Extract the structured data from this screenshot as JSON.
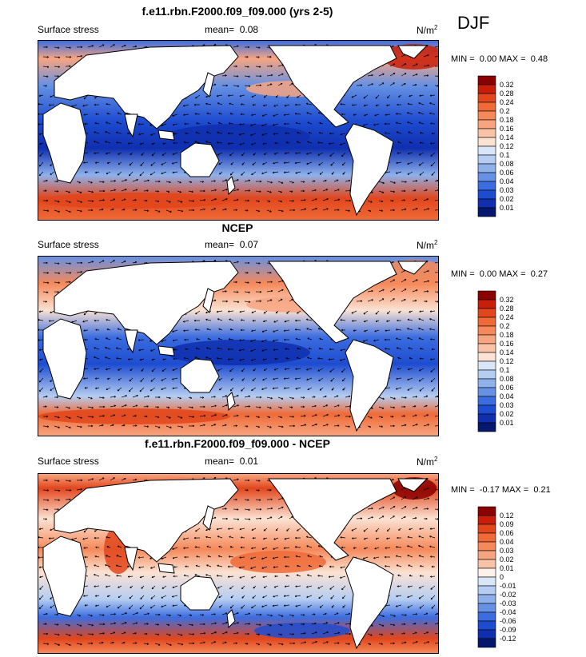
{
  "season": "DJF",
  "variable": "Surface stress",
  "units": "N/m",
  "units_sup": "2",
  "mean_label": "mean=",
  "minmax": {
    "min_label": "MIN =",
    "max_label": "MAX ="
  },
  "panels": [
    {
      "title": "f.e11.rbn.F2000.f09_f09.000 (yrs 2-5)",
      "mean": "0.08",
      "min": "0.00",
      "max": "0.48",
      "colorbar": {
        "labels": [
          "0.32",
          "0.28",
          "0.24",
          "0.2",
          "0.18",
          "0.16",
          "0.14",
          "0.12",
          "0.1",
          "0.08",
          "0.06",
          "0.04",
          "0.03",
          "0.02",
          "0.01"
        ],
        "colors": [
          "#8b0000",
          "#c81e0a",
          "#e2461c",
          "#ef6a37",
          "#f5895a",
          "#f7a581",
          "#f9c3a7",
          "#fbe2d3",
          "#d8e6f8",
          "#b5cdf2",
          "#8eb1ec",
          "#6691e4",
          "#3c6de0",
          "#1e4cd0",
          "#0f2fae",
          "#05186e"
        ]
      }
    },
    {
      "title": "NCEP",
      "mean": "0.07",
      "min": "0.00",
      "max": "0.27",
      "colorbar": {
        "labels": [
          "0.32",
          "0.28",
          "0.24",
          "0.2",
          "0.18",
          "0.16",
          "0.14",
          "0.12",
          "0.1",
          "0.08",
          "0.06",
          "0.04",
          "0.03",
          "0.02",
          "0.01"
        ],
        "colors": [
          "#8b0000",
          "#c81e0a",
          "#e2461c",
          "#ef6a37",
          "#f5895a",
          "#f7a581",
          "#f9c3a7",
          "#fbe2d3",
          "#d8e6f8",
          "#b5cdf2",
          "#8eb1ec",
          "#6691e4",
          "#3c6de0",
          "#1e4cd0",
          "#0f2fae",
          "#05186e"
        ]
      }
    },
    {
      "title": "f.e11.rbn.F2000.f09_f09.000 - NCEP",
      "mean": "0.01",
      "min": "-0.17",
      "max": "0.21",
      "colorbar": {
        "labels": [
          "0.12",
          "0.09",
          "0.06",
          "0.04",
          "0.03",
          "0.02",
          "0.01",
          "0",
          "-0.01",
          "-0.02",
          "-0.03",
          "-0.04",
          "-0.06",
          "-0.09",
          "-0.12"
        ],
        "colors": [
          "#8b0000",
          "#c81e0a",
          "#e2461c",
          "#ef6a37",
          "#f5895a",
          "#f7a581",
          "#f9c3a7",
          "#fdf1ea",
          "#d8e6f8",
          "#b5cdf2",
          "#8eb1ec",
          "#6691e4",
          "#3c6de0",
          "#1e4cd0",
          "#0f2fae",
          "#05186e"
        ]
      }
    }
  ],
  "chart_data": [
    {
      "type": "heatmap",
      "title": "f.e11.rbn.F2000.f09_f09.000 (yrs 2-5)",
      "field": "Surface stress",
      "units": "N/m2",
      "season": "DJF",
      "mean": 0.08,
      "min": 0.0,
      "max": 0.48,
      "contour_levels": [
        0.01,
        0.02,
        0.03,
        0.04,
        0.06,
        0.08,
        0.1,
        0.12,
        0.14,
        0.16,
        0.18,
        0.2,
        0.24,
        0.28,
        0.32
      ]
    },
    {
      "type": "heatmap",
      "title": "NCEP",
      "field": "Surface stress",
      "units": "N/m2",
      "season": "DJF",
      "mean": 0.07,
      "min": 0.0,
      "max": 0.27,
      "contour_levels": [
        0.01,
        0.02,
        0.03,
        0.04,
        0.06,
        0.08,
        0.1,
        0.12,
        0.14,
        0.16,
        0.18,
        0.2,
        0.24,
        0.28,
        0.32
      ]
    },
    {
      "type": "heatmap",
      "title": "f.e11.rbn.F2000.f09_f09.000 - NCEP",
      "field": "Surface stress",
      "units": "N/m2",
      "season": "DJF",
      "mean": 0.01,
      "min": -0.17,
      "max": 0.21,
      "contour_levels": [
        -0.12,
        -0.09,
        -0.06,
        -0.04,
        -0.03,
        -0.02,
        -0.01,
        0,
        0.01,
        0.02,
        0.03,
        0.04,
        0.06,
        0.09,
        0.12
      ]
    }
  ]
}
